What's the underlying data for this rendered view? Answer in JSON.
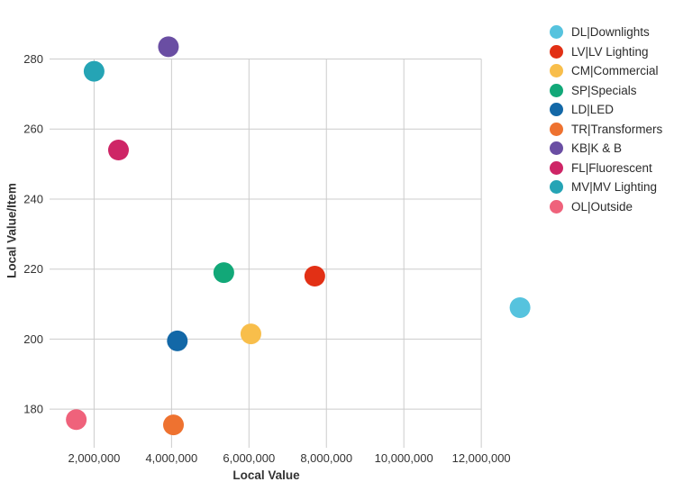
{
  "chart_data": {
    "type": "scatter",
    "title": "",
    "xlabel": "Local Value",
    "ylabel": "Local Value/Item",
    "xlim": [
      850000,
      13300000
    ],
    "ylim": [
      170,
      293
    ],
    "x_ticks": [
      2000000,
      4000000,
      6000000,
      8000000,
      10000000,
      12000000
    ],
    "x_tick_labels": [
      "2,000,000",
      "4,000,000",
      "6,000,000",
      "8,000,000",
      "10,000,000",
      "12,000,000"
    ],
    "y_ticks": [
      180,
      200,
      220,
      240,
      260,
      280
    ],
    "y_tick_labels": [
      "180",
      "200",
      "220",
      "240",
      "260",
      "280"
    ],
    "grid": true,
    "legend_position": "right",
    "grid_color": "#cccccc",
    "text_color": "#333333",
    "marker_radius": 11.5,
    "series": [
      {
        "code": "DL",
        "name": "DL|Downlights",
        "color": "#56C3DE",
        "x": 13000000,
        "y": 209
      },
      {
        "code": "LV",
        "name": "LV|LV Lighting",
        "color": "#E23015",
        "x": 7700000,
        "y": 218
      },
      {
        "code": "CM",
        "name": "CM|Commercial",
        "color": "#F8BE4B",
        "x": 6050000,
        "y": 201.5
      },
      {
        "code": "SP",
        "name": "SP|Specials",
        "color": "#12A878",
        "x": 5350000,
        "y": 219
      },
      {
        "code": "LD",
        "name": "LD|LED",
        "color": "#1368A7",
        "x": 4150000,
        "y": 199.5
      },
      {
        "code": "TR",
        "name": "TR|Transformers",
        "color": "#EE7230",
        "x": 4050000,
        "y": 175.5
      },
      {
        "code": "KB",
        "name": "KB|K & B",
        "color": "#6A4EA3",
        "x": 3920000,
        "y": 283.5
      },
      {
        "code": "FL",
        "name": "FL|Fluorescent",
        "color": "#CE2566",
        "x": 2630000,
        "y": 254
      },
      {
        "code": "MV",
        "name": "MV|MV Lighting",
        "color": "#25A4B5",
        "x": 2000000,
        "y": 276.5
      },
      {
        "code": "OL",
        "name": "OL|Outside",
        "color": "#EF627B",
        "x": 1540000,
        "y": 177
      }
    ]
  }
}
